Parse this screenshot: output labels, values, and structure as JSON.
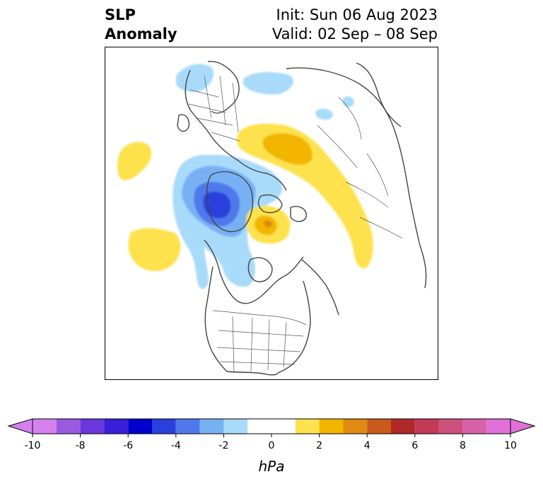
{
  "header": {
    "title_line1": "SLP",
    "title_line2": "Anomaly",
    "init": "Init: Sun 06 Aug 2023",
    "valid": "Valid: 02 Sep – 08 Sep"
  },
  "colorbar": {
    "unit": "hPa",
    "tick_labels": [
      "-10",
      "-8",
      "-6",
      "-4",
      "-2",
      "0",
      "2",
      "4",
      "6",
      "8",
      "10"
    ],
    "bins": [
      {
        "range": "-10 to -9",
        "color": "#d680ee"
      },
      {
        "range": "-9 to -8",
        "color": "#9a5ae0"
      },
      {
        "range": "-8 to -7",
        "color": "#6a37dd"
      },
      {
        "range": "-7 to -6",
        "color": "#3a1ed8"
      },
      {
        "range": "-6 to -5",
        "color": "#0000cc"
      },
      {
        "range": "-5 to -4",
        "color": "#2a40dd"
      },
      {
        "range": "-4 to -3",
        "color": "#4f78ea"
      },
      {
        "range": "-3 to -2",
        "color": "#78b0f4"
      },
      {
        "range": "-2 to -1",
        "color": "#a8dafa"
      },
      {
        "range": "-1 to 1",
        "color": "#ffffff"
      },
      {
        "range": "1 to 2",
        "color": "#fde24e"
      },
      {
        "range": "2 to 3",
        "color": "#f2b500"
      },
      {
        "range": "3 to 4",
        "color": "#df8a10"
      },
      {
        "range": "4 to 5",
        "color": "#c85a1c"
      },
      {
        "range": "5 to 6",
        "color": "#b02828"
      },
      {
        "range": "6 to 7",
        "color": "#c23a56"
      },
      {
        "range": "7 to 8",
        "color": "#cc4f7c"
      },
      {
        "range": "8 to 9",
        "color": "#d862a8"
      },
      {
        "range": "9 to 10",
        "color": "#e070d8"
      }
    ],
    "extend": "both",
    "under_color": "#d680ee",
    "over_color": "#e070d8"
  },
  "map": {
    "projection": "polar stereographic (North Pole)",
    "coastline_color": "#444444",
    "anomaly_features": [
      {
        "region": "Greenland",
        "sign": "negative",
        "color": "#a8dafa"
      },
      {
        "region": "Scandinavia",
        "sign": "negative",
        "color": "#a8dafa"
      },
      {
        "region": "Eastern Siberia",
        "sign": "negative",
        "color": "#a8dafa"
      },
      {
        "region": "North Atlantic",
        "sign": "positive",
        "color": "#fde24e"
      },
      {
        "region": "Central Atlantic",
        "sign": "positive",
        "color": "#fde24e"
      },
      {
        "region": "Western Siberia / Central Asia",
        "sign": "positive",
        "color": "#f2b500"
      },
      {
        "region": "Alaska / Bering Sea",
        "sign": "positive",
        "color": "#fde24e"
      },
      {
        "region": "Arctic Ocean (Siberian side)",
        "sign": "positive",
        "color": "#f2b500"
      },
      {
        "region": "Beaufort Sea / NW Canada",
        "sign": "negative",
        "color": "#2a40dd"
      },
      {
        "region": "Hudson Bay / NE Canada",
        "sign": "negative",
        "color": "#78b0f4"
      }
    ]
  }
}
